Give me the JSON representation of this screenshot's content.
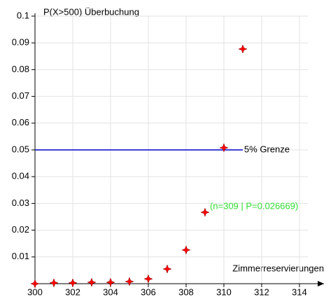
{
  "chart_data": {
    "type": "scatter",
    "ylabel": "P(X>500)  Überbuchung",
    "xlabel": "Zimmerreservierungen",
    "series": [
      {
        "name": "P(X>500)",
        "color": "#ff0000",
        "x": [
          300,
          301,
          302,
          303,
          304,
          305,
          306,
          307,
          308,
          309,
          310,
          311
        ],
        "values": [
          0,
          0.0003,
          0.0003,
          0.0005,
          0.0005,
          0.0008,
          0.0018,
          0.0055,
          0.0126,
          0.026669,
          0.0508,
          0.0877
        ]
      }
    ],
    "xlim": [
      300,
      315.3
    ],
    "ylim": [
      0,
      0.1
    ],
    "xticks": [
      300,
      302,
      304,
      306,
      308,
      310,
      312,
      314
    ],
    "yticks": [
      0.01,
      0.02,
      0.03,
      0.04,
      0.05,
      0.06,
      0.07,
      0.08,
      0.09,
      0.1
    ],
    "grid": true,
    "hline": {
      "y": 0.05,
      "x": [
        300,
        311
      ],
      "label": "5% Grenze",
      "color": "#0000cc"
    },
    "annotation": {
      "text": "(n=309 | P=0.026669)",
      "x": 309,
      "y": 0.026669,
      "color": "#33dd33"
    }
  }
}
